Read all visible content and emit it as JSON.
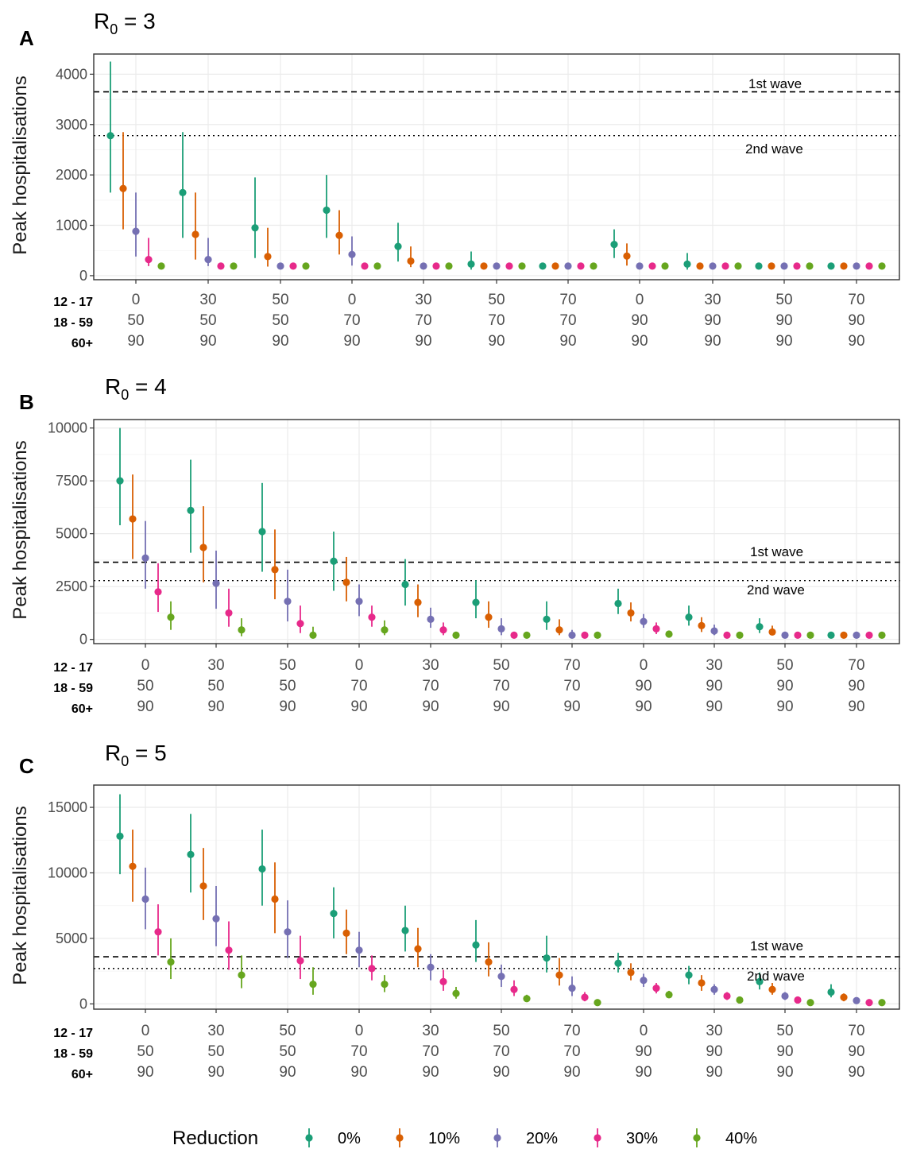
{
  "figure": {
    "group_labels": [
      "12 - 17",
      "18 - 59",
      "60+"
    ],
    "x_categories": [
      {
        "a": "0",
        "b": "50",
        "c": "90"
      },
      {
        "a": "30",
        "b": "50",
        "c": "90"
      },
      {
        "a": "50",
        "b": "50",
        "c": "90"
      },
      {
        "a": "0",
        "b": "70",
        "c": "90"
      },
      {
        "a": "30",
        "b": "70",
        "c": "90"
      },
      {
        "a": "50",
        "b": "70",
        "c": "90"
      },
      {
        "a": "70",
        "b": "70",
        "c": "90"
      },
      {
        "a": "0",
        "b": "90",
        "c": "90"
      },
      {
        "a": "30",
        "b": "90",
        "c": "90"
      },
      {
        "a": "50",
        "b": "90",
        "c": "90"
      },
      {
        "a": "70",
        "b": "90",
        "c": "90"
      }
    ],
    "y_axis_label": "Peak hospitalisations",
    "legend": {
      "title": "Reduction",
      "items": [
        {
          "label": "0%",
          "color": "#1b9e77"
        },
        {
          "label": "10%",
          "color": "#d95f02"
        },
        {
          "label": "20%",
          "color": "#7570b3"
        },
        {
          "label": "30%",
          "color": "#e7298a"
        },
        {
          "label": "40%",
          "color": "#66a61e"
        }
      ]
    },
    "reference_labels": {
      "first": "1st wave",
      "second": "2nd wave"
    }
  },
  "chart_data": [
    {
      "panel": "A",
      "title_base": "R",
      "title_sub": "0",
      "title_rest": " = 3",
      "type": "scatter",
      "ylabel": "Peak hospitalisations",
      "ylim": [
        -80,
        4400
      ],
      "yticks": [
        0,
        1000,
        2000,
        3000,
        4000
      ],
      "reference_lines": {
        "first_wave": 3650,
        "second_wave": 2780
      },
      "series": [
        {
          "name": "0%",
          "values": [
            2780,
            1650,
            950,
            1300,
            580,
            230,
            190,
            620,
            230,
            190,
            190
          ],
          "lower": [
            1650,
            750,
            350,
            750,
            280,
            120,
            190,
            350,
            120,
            190,
            190
          ],
          "upper": [
            4250,
            2850,
            1950,
            2000,
            1050,
            480,
            190,
            920,
            450,
            190,
            190
          ]
        },
        {
          "name": "10%",
          "values": [
            1730,
            820,
            380,
            800,
            290,
            190,
            190,
            390,
            190,
            190,
            190
          ],
          "lower": [
            920,
            320,
            180,
            420,
            170,
            190,
            190,
            200,
            190,
            190,
            190
          ],
          "upper": [
            2850,
            1650,
            950,
            1300,
            580,
            190,
            190,
            640,
            190,
            190,
            190
          ]
        },
        {
          "name": "20%",
          "values": [
            880,
            320,
            190,
            420,
            190,
            190,
            190,
            190,
            190,
            190,
            190
          ],
          "lower": [
            380,
            190,
            190,
            200,
            190,
            190,
            190,
            190,
            190,
            190,
            190
          ],
          "upper": [
            1650,
            750,
            190,
            780,
            190,
            190,
            190,
            190,
            190,
            190,
            190
          ]
        },
        {
          "name": "30%",
          "values": [
            320,
            190,
            190,
            190,
            190,
            190,
            190,
            190,
            190,
            190,
            190
          ],
          "lower": [
            190,
            190,
            190,
            190,
            190,
            190,
            190,
            190,
            190,
            190,
            190
          ],
          "upper": [
            750,
            190,
            190,
            190,
            190,
            190,
            190,
            190,
            190,
            190,
            190
          ]
        },
        {
          "name": "40%",
          "values": [
            190,
            190,
            190,
            190,
            190,
            190,
            190,
            190,
            190,
            190,
            190
          ],
          "lower": [
            190,
            190,
            190,
            190,
            190,
            190,
            190,
            190,
            190,
            190,
            190
          ],
          "upper": [
            190,
            190,
            190,
            190,
            190,
            190,
            190,
            190,
            190,
            190,
            190
          ]
        }
      ]
    },
    {
      "panel": "B",
      "title_base": "R",
      "title_sub": "0",
      "title_rest": " = 4",
      "type": "scatter",
      "ylabel": "Peak hospitalisations",
      "ylim": [
        -200,
        10400
      ],
      "yticks": [
        0,
        2500,
        5000,
        7500,
        10000
      ],
      "reference_lines": {
        "first_wave": 3650,
        "second_wave": 2780
      },
      "series": [
        {
          "name": "0%",
          "values": [
            7500,
            6100,
            5100,
            3700,
            2600,
            1750,
            950,
            1700,
            1050,
            600,
            200
          ],
          "lower": [
            5400,
            4100,
            3200,
            2300,
            1600,
            1000,
            450,
            1200,
            650,
            300,
            200
          ],
          "upper": [
            10000,
            8500,
            7400,
            5100,
            3800,
            2800,
            1800,
            2400,
            1600,
            1000,
            200
          ]
        },
        {
          "name": "10%",
          "values": [
            5700,
            4350,
            3300,
            2700,
            1750,
            1050,
            450,
            1250,
            650,
            350,
            200
          ],
          "lower": [
            3800,
            2700,
            1900,
            1800,
            1050,
            550,
            200,
            850,
            350,
            200,
            200
          ],
          "upper": [
            7800,
            6300,
            5200,
            3900,
            2600,
            1800,
            950,
            1750,
            1050,
            650,
            200
          ]
        },
        {
          "name": "20%",
          "values": [
            3850,
            2650,
            1800,
            1800,
            950,
            500,
            200,
            850,
            400,
            200,
            200
          ],
          "lower": [
            2400,
            1450,
            850,
            1100,
            550,
            200,
            200,
            550,
            200,
            200,
            200
          ],
          "upper": [
            5600,
            4200,
            3300,
            2600,
            1500,
            1000,
            450,
            1200,
            700,
            200,
            200
          ]
        },
        {
          "name": "30%",
          "values": [
            2250,
            1250,
            750,
            1050,
            450,
            200,
            200,
            500,
            200,
            200,
            200
          ],
          "lower": [
            1300,
            600,
            300,
            600,
            200,
            200,
            200,
            250,
            200,
            200,
            200
          ],
          "upper": [
            3600,
            2400,
            1600,
            1600,
            800,
            200,
            200,
            800,
            200,
            200,
            200
          ]
        },
        {
          "name": "40%",
          "values": [
            1050,
            450,
            200,
            450,
            200,
            200,
            200,
            250,
            200,
            200,
            200
          ],
          "lower": [
            450,
            150,
            100,
            200,
            200,
            200,
            200,
            150,
            200,
            200,
            200
          ],
          "upper": [
            1800,
            1000,
            600,
            900,
            200,
            200,
            200,
            400,
            200,
            200,
            200
          ]
        }
      ]
    },
    {
      "panel": "C",
      "title_base": "R",
      "title_sub": "0",
      "title_rest": " = 5",
      "type": "scatter",
      "ylabel": "Peak hospitalisations",
      "ylim": [
        -400,
        16700
      ],
      "yticks": [
        0,
        5000,
        10000,
        15000
      ],
      "reference_lines": {
        "first_wave": 3600,
        "second_wave": 2700
      },
      "series": [
        {
          "name": "0%",
          "values": [
            12800,
            11400,
            10300,
            6900,
            5600,
            4500,
            3500,
            3100,
            2200,
            1700,
            900
          ],
          "lower": [
            9900,
            8500,
            7500,
            5000,
            4000,
            3200,
            2400,
            2400,
            1500,
            1100,
            500
          ],
          "upper": [
            16000,
            14500,
            13300,
            8900,
            7500,
            6400,
            5200,
            3900,
            2900,
            2400,
            1500
          ]
        },
        {
          "name": "10%",
          "values": [
            10500,
            9000,
            8000,
            5400,
            4200,
            3200,
            2200,
            2400,
            1600,
            1100,
            500
          ],
          "lower": [
            7800,
            6400,
            5400,
            3800,
            2800,
            2100,
            1400,
            1800,
            1000,
            700,
            200
          ],
          "upper": [
            13300,
            11900,
            10800,
            7200,
            5800,
            4700,
            3500,
            3100,
            2200,
            1600,
            800
          ]
        },
        {
          "name": "20%",
          "values": [
            8000,
            6500,
            5500,
            4100,
            2800,
            2100,
            1200,
            1800,
            1100,
            600,
            250
          ],
          "lower": [
            5700,
            4400,
            3500,
            2800,
            1800,
            1300,
            600,
            1300,
            700,
            300,
            150
          ],
          "upper": [
            10400,
            9000,
            7900,
            5500,
            3800,
            3000,
            2100,
            2300,
            1500,
            900,
            350
          ]
        },
        {
          "name": "30%",
          "values": [
            5500,
            4100,
            3300,
            2700,
            1700,
            1100,
            500,
            1200,
            600,
            300,
            100
          ],
          "lower": [
            3700,
            2600,
            1900,
            1800,
            1000,
            600,
            200,
            800,
            300,
            150,
            100
          ],
          "upper": [
            7600,
            6300,
            5200,
            3700,
            2600,
            1800,
            900,
            1600,
            900,
            500,
            100
          ]
        },
        {
          "name": "40%",
          "values": [
            3200,
            2200,
            1500,
            1500,
            800,
            400,
            100,
            700,
            300,
            100,
            100
          ],
          "lower": [
            1900,
            1200,
            700,
            900,
            400,
            150,
            50,
            450,
            150,
            50,
            100
          ],
          "upper": [
            5000,
            3700,
            2800,
            2200,
            1300,
            700,
            200,
            1000,
            450,
            200,
            100
          ]
        }
      ]
    }
  ]
}
